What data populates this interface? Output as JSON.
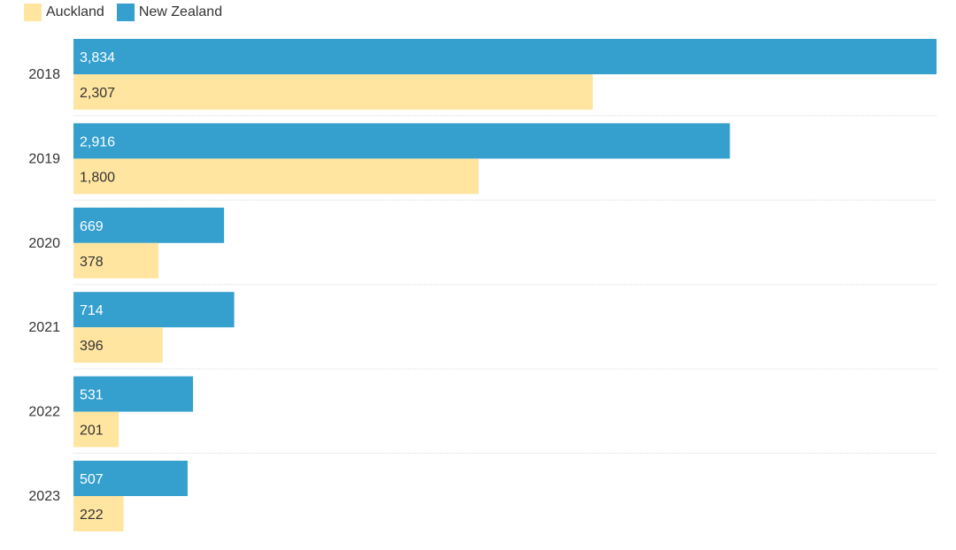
{
  "chart_data": {
    "type": "bar",
    "orientation": "horizontal",
    "categories": [
      "2018",
      "2019",
      "2020",
      "2021",
      "2022",
      "2023"
    ],
    "series": [
      {
        "name": "New Zealand",
        "values": [
          3834,
          2916,
          669,
          714,
          531,
          507
        ],
        "color": "#35a0ce",
        "label_color": "#ffffff"
      },
      {
        "name": "Auckland",
        "values": [
          2307,
          1800,
          378,
          396,
          201,
          222
        ],
        "color": "#ffe5a0",
        "label_color": "#333333"
      }
    ],
    "value_labels": {
      "New Zealand": [
        "3,834",
        "2,916",
        "669",
        "714",
        "531",
        "507"
      ],
      "Auckland": [
        "2,307",
        "1,800",
        "378",
        "396",
        "201",
        "222"
      ]
    },
    "legend": {
      "placement": "top-left",
      "items": [
        {
          "name": "Auckland",
          "color": "#ffe5a0"
        },
        {
          "name": "New Zealand",
          "color": "#35a0ce"
        }
      ]
    },
    "xlim": [
      0,
      3834
    ],
    "grid": false
  }
}
